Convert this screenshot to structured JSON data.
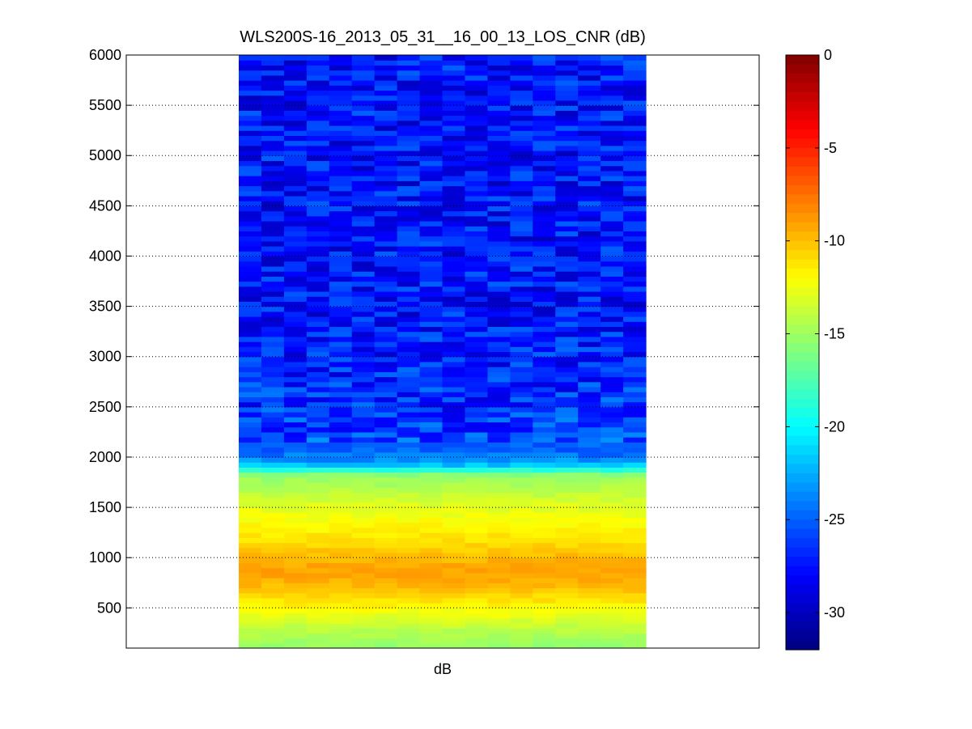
{
  "chart_data": {
    "type": "heatmap",
    "title": "WLS200S-16_2013_05_31__16_00_13_LOS_CNR (dB)",
    "xlabel": "dB",
    "ylabel": "",
    "y_range": [
      100,
      6000
    ],
    "y_ticks": [
      500,
      1000,
      1500,
      2000,
      2500,
      3000,
      3500,
      4000,
      4500,
      5000,
      5500,
      6000
    ],
    "grid": "dotted horizontal lines at y ticks",
    "colormap": "jet",
    "colorbar": {
      "range": [
        -32,
        0
      ],
      "ticks": [
        0,
        -5,
        -10,
        -15,
        -20,
        -25,
        -30
      ],
      "colors": [
        "#00007f",
        "#0000ff",
        "#007fff",
        "#00ffff",
        "#7fff7f",
        "#ffff00",
        "#ff7f00",
        "#ff0000",
        "#7f0000"
      ]
    },
    "columns": 18,
    "profile": {
      "altitude": [
        100,
        200,
        300,
        400,
        500,
        600,
        700,
        800,
        850,
        900,
        1000,
        1100,
        1200,
        1300,
        1400,
        1500,
        1600,
        1700,
        1800,
        1850,
        1900,
        1950,
        2000,
        2050,
        2100,
        2200,
        2300,
        2500,
        3000,
        3500,
        4000,
        4500,
        5000,
        5500,
        6000
      ],
      "cnr_db": [
        -15.5,
        -14.8,
        -14,
        -13,
        -12,
        -11,
        -10,
        -9.3,
        -9,
        -9.2,
        -9.8,
        -10.5,
        -11.2,
        -11.8,
        -12.3,
        -12.8,
        -13.6,
        -14.5,
        -15.2,
        -16.5,
        -21,
        -23,
        -24,
        -24.6,
        -25,
        -25.5,
        -26,
        -26.5,
        -27,
        -27.5,
        -27.5,
        -27.5,
        -27.5,
        -27.5,
        -27.5
      ]
    },
    "variation_db": "approximately ±0.5 below 2000, approximately ±2.5 above 2000"
  }
}
